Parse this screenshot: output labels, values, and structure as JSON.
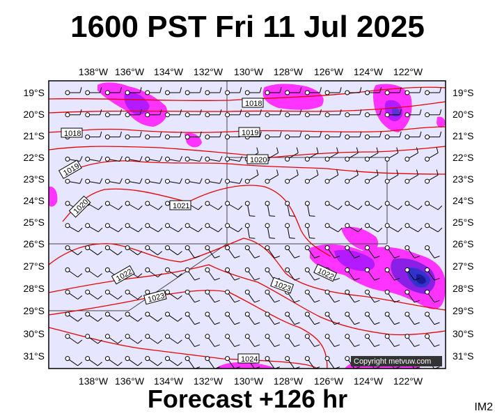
{
  "title": "1600 PST Fri 11 Jul 2025",
  "subtitle": "Forecast +126 hr",
  "corner_label": "IM2",
  "copyright": "Copyright metvuw.com",
  "map": {
    "lon_labels": [
      "138°W",
      "136°W",
      "134°W",
      "132°W",
      "130°W",
      "128°W",
      "126°W",
      "124°W",
      "122°W"
    ],
    "lat_labels": [
      "19°S",
      "20°S",
      "21°S",
      "22°S",
      "23°S",
      "24°S",
      "25°S",
      "26°S",
      "27°S",
      "28°S",
      "29°S",
      "30°S",
      "31°S"
    ],
    "isobar_labels": [
      "1018",
      "1018",
      "1019",
      "1019",
      "1020",
      "1020",
      "1021",
      "1022",
      "1022",
      "1023",
      "1023",
      "1024",
      "1024"
    ],
    "colors": {
      "ocean": "#e6e6ff",
      "isobar": "#e80000",
      "rain_light": "#ff33ff",
      "rain_medium": "#b31aff",
      "rain_heavy": "#3333cc"
    }
  }
}
